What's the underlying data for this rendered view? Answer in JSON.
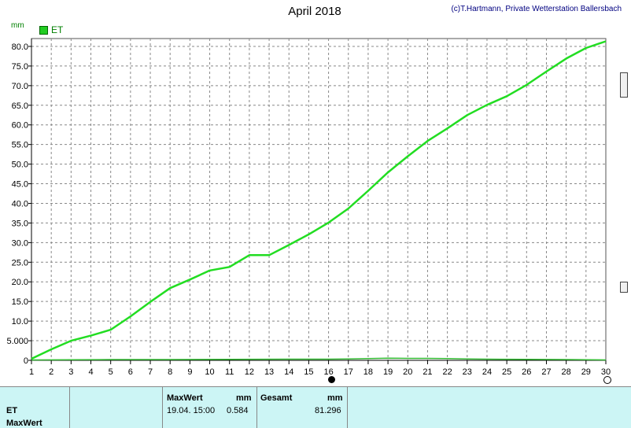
{
  "header": {
    "title": "April 2018",
    "copyright": "(c)T.Hartmann, Private Wetterstation Ballersbach"
  },
  "legend": {
    "label": "ET",
    "color": "#22cc22"
  },
  "chart_data": {
    "type": "line",
    "ylabel": "mm",
    "ylim": [
      0,
      82
    ],
    "xlim": [
      1,
      30
    ],
    "grid": true,
    "legend_position": "top-left",
    "x_ticks": [
      "1",
      "2",
      "3",
      "4",
      "5",
      "6",
      "7",
      "8",
      "9",
      "10",
      "11",
      "12",
      "13",
      "14",
      "15",
      "16",
      "17",
      "18",
      "19",
      "20",
      "21",
      "22",
      "23",
      "24",
      "25",
      "26",
      "27",
      "28",
      "29",
      "30"
    ],
    "y_ticks": [
      "0",
      "5.000",
      "10.0",
      "15.0",
      "20.0",
      "25.0",
      "30.0",
      "35.0",
      "40.0",
      "45.0",
      "50.0",
      "55.0",
      "60.0",
      "65.0",
      "70.0",
      "75.0",
      "80.0"
    ],
    "series": [
      {
        "name": "ET",
        "color": "#22dd22",
        "x": [
          1,
          2,
          3,
          4,
          5,
          6,
          7,
          8,
          9,
          10,
          11,
          12,
          13,
          14,
          15,
          16,
          17,
          18,
          19,
          20,
          21,
          22,
          23,
          24,
          25,
          26,
          27,
          28,
          29,
          30
        ],
        "values": [
          0.4,
          2.8,
          5.0,
          6.3,
          7.8,
          11.2,
          14.9,
          18.4,
          20.6,
          22.9,
          23.8,
          26.8,
          26.8,
          29.4,
          32.1,
          35.1,
          38.7,
          43.2,
          47.9,
          52.0,
          55.9,
          59.1,
          62.5,
          65.1,
          67.3,
          70.2,
          73.6,
          76.9,
          79.6,
          81.3
        ]
      },
      {
        "name": "",
        "color": "#33bb33",
        "x": [
          1,
          3,
          5,
          8,
          11,
          14,
          16,
          17,
          18,
          19,
          20,
          21,
          22,
          23,
          24,
          26,
          28,
          30
        ],
        "values": [
          0.1,
          0.15,
          0.2,
          0.2,
          0.25,
          0.3,
          0.3,
          0.35,
          0.45,
          0.55,
          0.5,
          0.5,
          0.45,
          0.35,
          0.3,
          0.25,
          0.2,
          0.1
        ]
      }
    ]
  },
  "table": {
    "row_label": "ET",
    "row_label2": "MaxWert",
    "maxwert_header": "MaxWert",
    "maxwert_unit": "mm",
    "maxwert_time": "19.04.  15:00",
    "maxwert_value": "0.584",
    "gesamt_header": "Gesamt",
    "gesamt_unit": "mm",
    "gesamt_value": "81.296"
  }
}
